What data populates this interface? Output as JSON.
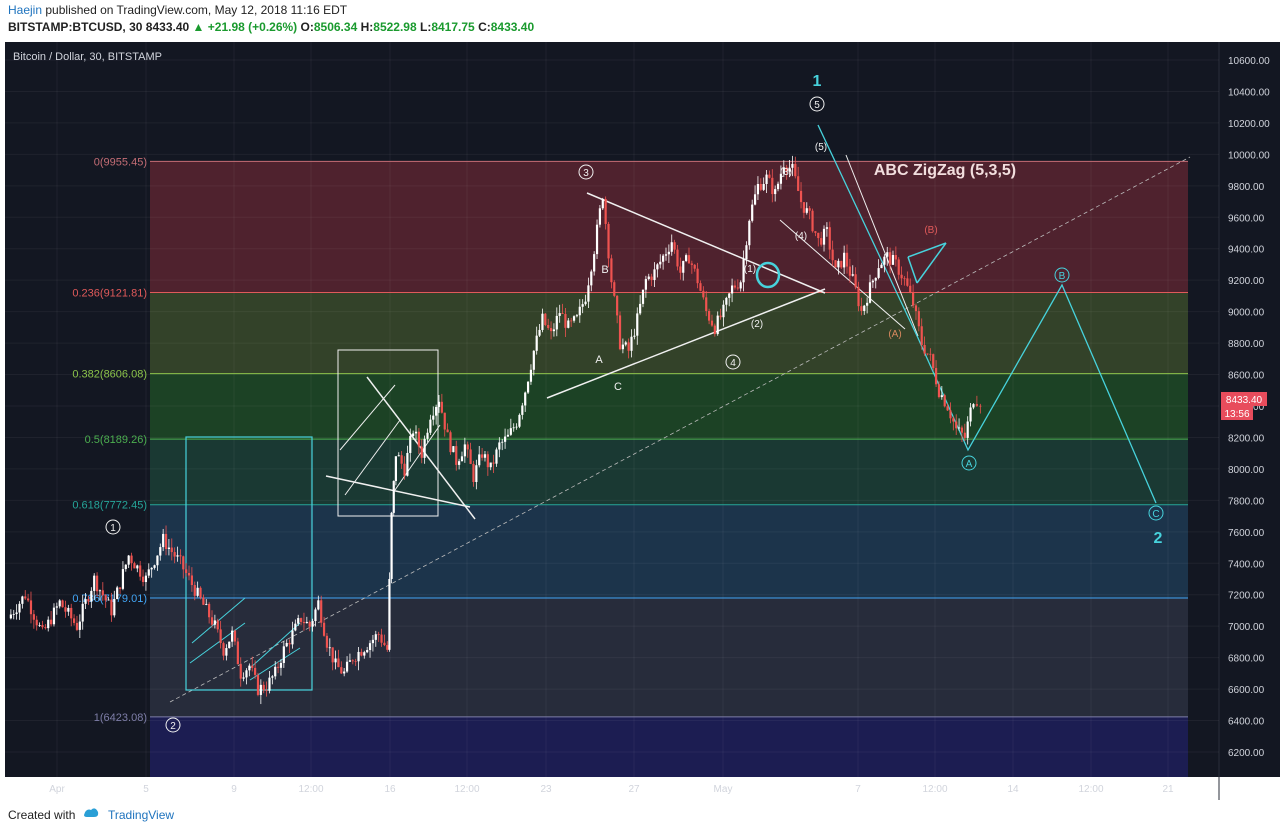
{
  "header": {
    "author": "Haejin",
    "published": "published on TradingView.com, May 12, 2018 11:16 EDT",
    "symbol": "BITSTAMP:BTCUSD, 30",
    "last": "8433.40",
    "change_arrow": "▲",
    "change": "+21.98 (+0.26%)",
    "o_label": "O:",
    "o_value": "8506.34",
    "h_label": "H:",
    "h_value": "8522.98",
    "l_label": "L:",
    "l_value": "8417.75",
    "c_label": "C:",
    "c_value": "8433.40"
  },
  "footer": {
    "created_with": "Created with",
    "brand": "TradingView"
  },
  "colors": {
    "background": "#131722",
    "candle_up": "#ffffff",
    "candle_down": "#ef5350",
    "wave": "#47d2dc",
    "fib_0": "#c46d75",
    "fib_236": "#e05a5a",
    "fib_382": "#8bc34a",
    "fib_5": "#4caf50",
    "fib_618": "#26a69a",
    "fib_786": "#42a5f5",
    "fib_1": "#7e7ea8",
    "price_tag": "#e84c5c"
  },
  "chart_data": {
    "type": "candlestick",
    "title": "Bitcoin / Dollar, 30, BITSTAMP",
    "ylim": [
      6000,
      10800
    ],
    "y_ticks": [
      "10600.00",
      "10400.00",
      "10200.00",
      "10000.00",
      "9800.00",
      "9600.00",
      "9400.00",
      "9200.00",
      "9000.00",
      "8800.00",
      "8600.00",
      "8400.00",
      "8200.00",
      "8000.00",
      "7800.00",
      "7600.00",
      "7400.00",
      "7200.00",
      "7000.00",
      "6800.00",
      "6600.00",
      "6400.00",
      "6200.00"
    ],
    "x_ticks": [
      "Apr",
      "5",
      "9",
      "12:00",
      "16",
      "12:00",
      "23",
      "27",
      "May",
      "7",
      "12:00",
      "14",
      "12:00",
      "21"
    ],
    "last_price": "8433.40",
    "countdown": "13:56",
    "fib_levels": [
      {
        "ratio": "0",
        "price": 9955.45,
        "label": "0(9955.45)"
      },
      {
        "ratio": "0.236",
        "price": 9121.81,
        "label": "0.236(9121.81)"
      },
      {
        "ratio": "0.382",
        "price": 8606.08,
        "label": "0.382(8606.08)"
      },
      {
        "ratio": "0.5",
        "price": 8189.26,
        "label": "0.5(8189.26)"
      },
      {
        "ratio": "0.618",
        "price": 7772.45,
        "label": "0.618(7772.45)"
      },
      {
        "ratio": "0.786",
        "price": 7179.01,
        "label": "0.786(7179.01)"
      },
      {
        "ratio": "1",
        "price": 6423.08,
        "label": "1(6423.08)"
      }
    ],
    "price_path": [
      [
        0,
        7050
      ],
      [
        2,
        7200
      ],
      [
        4,
        6950
      ],
      [
        6,
        7150
      ],
      [
        8,
        7000
      ],
      [
        10,
        7300
      ],
      [
        12,
        7100
      ],
      [
        14,
        7450
      ],
      [
        16,
        7300
      ],
      [
        18,
        7550
      ],
      [
        20,
        7400
      ],
      [
        22,
        7200
      ],
      [
        24,
        7000
      ],
      [
        25,
        6850
      ],
      [
        26,
        6950
      ],
      [
        27,
        6700
      ],
      [
        28,
        6750
      ],
      [
        29,
        6600
      ],
      [
        30,
        6620
      ],
      [
        31,
        6700
      ],
      [
        32,
        6850
      ],
      [
        33,
        6950
      ],
      [
        34,
        7050
      ],
      [
        35,
        7000
      ],
      [
        36,
        7150
      ],
      [
        37,
        6900
      ],
      [
        38,
        6750
      ],
      [
        39,
        6700
      ],
      [
        40,
        6800
      ],
      [
        41,
        6850
      ],
      [
        42,
        6900
      ],
      [
        43,
        6950
      ],
      [
        44,
        6850
      ],
      [
        44.5,
        7700
      ],
      [
        45,
        8100
      ],
      [
        46,
        8000
      ],
      [
        47,
        8250
      ],
      [
        48,
        8100
      ],
      [
        49,
        8350
      ],
      [
        50,
        8450
      ],
      [
        51,
        8200
      ],
      [
        52,
        8050
      ],
      [
        53,
        8150
      ],
      [
        54,
        7950
      ],
      [
        55,
        8100
      ],
      [
        56,
        8000
      ],
      [
        57,
        8150
      ],
      [
        58,
        8200
      ],
      [
        59,
        8300
      ],
      [
        60,
        8500
      ],
      [
        61,
        8750
      ],
      [
        62,
        8950
      ],
      [
        63,
        8850
      ],
      [
        64,
        9000
      ],
      [
        65,
        8900
      ],
      [
        66,
        8950
      ],
      [
        67,
        9100
      ],
      [
        68,
        9400
      ],
      [
        69,
        9750
      ],
      [
        70,
        9200
      ],
      [
        71,
        8800
      ],
      [
        72,
        8750
      ],
      [
        73,
        8950
      ],
      [
        74,
        9200
      ],
      [
        75,
        9250
      ],
      [
        76,
        9350
      ],
      [
        77,
        9450
      ],
      [
        78,
        9250
      ],
      [
        79,
        9350
      ],
      [
        80,
        9200
      ],
      [
        81,
        9000
      ],
      [
        82,
        8900
      ],
      [
        83,
        9000
      ],
      [
        84,
        9150
      ],
      [
        85,
        9200
      ],
      [
        86,
        9600
      ],
      [
        87,
        9800
      ],
      [
        88,
        9850
      ],
      [
        89,
        9750
      ],
      [
        90,
        9950
      ],
      [
        91,
        9900
      ],
      [
        92,
        9700
      ],
      [
        93,
        9600
      ],
      [
        94,
        9450
      ],
      [
        95,
        9500
      ],
      [
        96,
        9250
      ],
      [
        97,
        9350
      ],
      [
        98,
        9200
      ],
      [
        99,
        9000
      ],
      [
        100,
        9150
      ],
      [
        101,
        9300
      ],
      [
        102,
        9350
      ],
      [
        103,
        9300
      ],
      [
        104,
        9200
      ],
      [
        105,
        9050
      ],
      [
        106,
        8800
      ],
      [
        107,
        8700
      ],
      [
        108,
        8500
      ],
      [
        109,
        8400
      ],
      [
        110,
        8250
      ],
      [
        111,
        8200
      ],
      [
        112,
        8450
      ],
      [
        112.8,
        8433.4
      ]
    ],
    "annotations": [
      {
        "text": "ABC ZigZag (5,3,5)",
        "kind": "title-note"
      },
      {
        "text": "1",
        "kind": "wave-degree"
      },
      {
        "text": "2",
        "kind": "wave-degree"
      },
      {
        "text": "1",
        "kind": "circled"
      },
      {
        "text": "2",
        "kind": "circled"
      },
      {
        "text": "3",
        "kind": "circled"
      },
      {
        "text": "4",
        "kind": "circled"
      },
      {
        "text": "5",
        "kind": "circled"
      },
      {
        "text": "A",
        "kind": "abc"
      },
      {
        "text": "B",
        "kind": "abc"
      },
      {
        "text": "C",
        "kind": "abc"
      },
      {
        "text": "(1)",
        "kind": "paren"
      },
      {
        "text": "(2)",
        "kind": "paren"
      },
      {
        "text": "(3)",
        "kind": "paren"
      },
      {
        "text": "(4)",
        "kind": "paren"
      },
      {
        "text": "(5)",
        "kind": "paren"
      },
      {
        "text": "(A)",
        "kind": "paren-orange"
      },
      {
        "text": "(B)",
        "kind": "paren-red"
      },
      {
        "text": "A",
        "kind": "circled-cyan"
      },
      {
        "text": "B",
        "kind": "circled-cyan"
      },
      {
        "text": "C",
        "kind": "circled-cyan"
      }
    ],
    "projection": [
      [
        112.8,
        8100
      ],
      [
        118,
        9150
      ],
      [
        129,
        7680
      ]
    ]
  }
}
